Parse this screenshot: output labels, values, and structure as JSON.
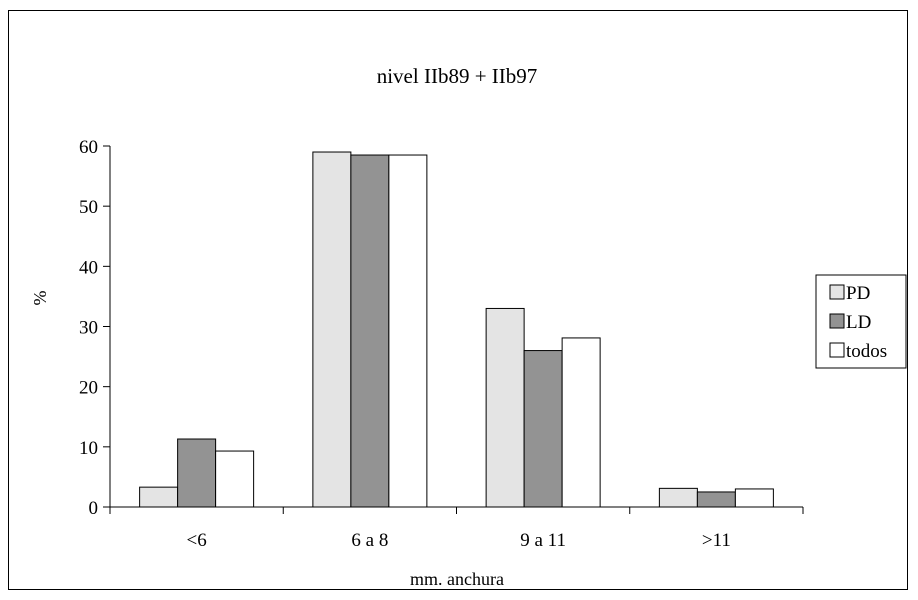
{
  "chart_data": {
    "type": "bar",
    "title": "nivel IIb89 + IIb97",
    "xlabel": "mm. anchura",
    "ylabel": "%",
    "ylim": [
      0,
      60
    ],
    "yticks": [
      0,
      10,
      20,
      30,
      40,
      50,
      60
    ],
    "categories": [
      "<6",
      "6 a 8",
      "9 a 11",
      ">11"
    ],
    "series": [
      {
        "name": "PD",
        "color": "#e4e4e4",
        "values": [
          3.3,
          59,
          33,
          3.1
        ]
      },
      {
        "name": "LD",
        "color": "#939393",
        "values": [
          11.3,
          58.5,
          26,
          2.5
        ]
      },
      {
        "name": "todos",
        "color": "#ffffff",
        "values": [
          9.3,
          58.5,
          28.1,
          3
        ]
      }
    ],
    "legend_position": "right",
    "grid": false
  }
}
